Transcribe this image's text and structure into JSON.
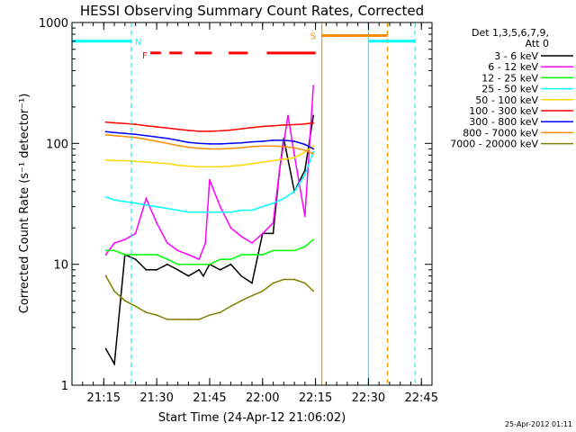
{
  "chart_data": {
    "type": "line",
    "title": "HESSI Observing Summary Count Rates, Corrected",
    "xlabel": "Start Time (24-Apr-12 21:06:02)",
    "ylabel": "Corrected Count Rate (s⁻¹ detector⁻¹)",
    "yscale": "log",
    "ylim": [
      1,
      1000
    ],
    "xlim_minutes": [
      21.1,
      22.8
    ],
    "x_ticks": [
      "21:15",
      "21:30",
      "21:45",
      "22:00",
      "22:15",
      "22:30",
      "22:45"
    ],
    "x_tick_minutes": [
      21.25,
      21.5,
      21.75,
      22.0,
      22.25,
      22.5,
      22.75
    ],
    "y_ticks": [
      "1",
      "10",
      "100",
      "1000"
    ],
    "y_tick_values": [
      1,
      10,
      100,
      1000
    ],
    "timestamp": "25-Apr-2012 01:11",
    "legend": {
      "header": [
        "Det 1,3,5,6,7,9,",
        "Att 0"
      ],
      "placement": "right"
    },
    "series": [
      {
        "name": "3 - 6 keV",
        "color": "#000000",
        "x": [
          21.26,
          21.3,
          21.35,
          21.4,
          21.45,
          21.5,
          21.55,
          21.6,
          21.65,
          21.7,
          21.72,
          21.75,
          21.8,
          21.85,
          21.9,
          21.95,
          22.0,
          22.05,
          22.08,
          22.1,
          22.15,
          22.2,
          22.24
        ],
        "y": [
          2,
          1.5,
          12,
          11,
          9,
          9,
          10,
          9,
          8,
          9,
          8,
          10,
          9,
          10,
          8,
          7,
          18,
          18,
          60,
          110,
          40,
          60,
          170
        ]
      },
      {
        "name": "6 - 12 keV",
        "color": "#ff00ff",
        "x": [
          21.26,
          21.3,
          21.35,
          21.4,
          21.45,
          21.5,
          21.55,
          21.6,
          21.65,
          21.7,
          21.73,
          21.75,
          21.8,
          21.85,
          21.9,
          21.95,
          22.0,
          22.05,
          22.08,
          22.12,
          22.15,
          22.2,
          22.24
        ],
        "y": [
          12,
          15,
          16,
          18,
          35,
          22,
          15,
          13,
          12,
          11,
          15,
          50,
          30,
          20,
          17,
          15,
          18,
          22,
          60,
          170,
          80,
          25,
          300
        ]
      },
      {
        "name": "12 - 25 keV",
        "color": "#00ff00",
        "x": [
          21.26,
          21.3,
          21.35,
          21.4,
          21.45,
          21.5,
          21.55,
          21.6,
          21.65,
          21.7,
          21.75,
          21.8,
          21.85,
          21.9,
          21.95,
          22.0,
          22.05,
          22.1,
          22.15,
          22.2,
          22.24
        ],
        "y": [
          13,
          13,
          12,
          12,
          12,
          12,
          11,
          10,
          10,
          10,
          10,
          11,
          11,
          12,
          12,
          12,
          13,
          13,
          13,
          14,
          16
        ]
      },
      {
        "name": "25 - 50 keV",
        "color": "#00ffff",
        "x": [
          21.26,
          21.3,
          21.35,
          21.4,
          21.45,
          21.5,
          21.55,
          21.6,
          21.65,
          21.7,
          21.75,
          21.8,
          21.85,
          21.9,
          21.95,
          22.0,
          22.05,
          22.1,
          22.15,
          22.2,
          22.24
        ],
        "y": [
          36,
          34,
          33,
          32,
          31,
          30,
          29,
          28,
          27,
          27,
          27,
          27,
          27,
          28,
          28,
          30,
          32,
          35,
          40,
          55,
          85
        ]
      },
      {
        "name": "50 - 100 keV",
        "color": "#ffd700",
        "x": [
          21.26,
          21.3,
          21.35,
          21.4,
          21.45,
          21.5,
          21.55,
          21.6,
          21.65,
          21.7,
          21.75,
          21.8,
          21.85,
          21.9,
          21.95,
          22.0,
          22.05,
          22.1,
          22.15,
          22.2,
          22.24
        ],
        "y": [
          73,
          72,
          72,
          71,
          70,
          69,
          68,
          66,
          65,
          64,
          64,
          64,
          65,
          66,
          68,
          70,
          72,
          74,
          76,
          85,
          95
        ]
      },
      {
        "name": "100 - 300 keV",
        "color": "#ff0000",
        "x": [
          21.26,
          21.3,
          21.35,
          21.4,
          21.45,
          21.5,
          21.55,
          21.6,
          21.65,
          21.7,
          21.75,
          21.8,
          21.85,
          21.9,
          21.95,
          22.0,
          22.05,
          22.1,
          22.15,
          22.2,
          22.24
        ],
        "y": [
          150,
          148,
          146,
          144,
          140,
          137,
          134,
          131,
          128,
          126,
          126,
          127,
          129,
          132,
          135,
          138,
          140,
          142,
          143,
          145,
          148
        ]
      },
      {
        "name": "300 - 800 keV",
        "color": "#0000ff",
        "x": [
          21.26,
          21.3,
          21.35,
          21.4,
          21.45,
          21.5,
          21.55,
          21.6,
          21.65,
          21.7,
          21.75,
          21.8,
          21.85,
          21.9,
          21.95,
          22.0,
          22.05,
          22.1,
          22.15,
          22.2,
          22.24
        ],
        "y": [
          125,
          123,
          121,
          119,
          116,
          113,
          110,
          106,
          102,
          100,
          99,
          99,
          100,
          101,
          103,
          104,
          106,
          106,
          104,
          98,
          90
        ]
      },
      {
        "name": "800 - 7000 keV",
        "color": "#ff8c00",
        "x": [
          21.26,
          21.3,
          21.35,
          21.4,
          21.45,
          21.5,
          21.55,
          21.6,
          21.65,
          21.7,
          21.75,
          21.8,
          21.85,
          21.9,
          21.95,
          22.0,
          22.05,
          22.1,
          22.15,
          22.2,
          22.24
        ],
        "y": [
          118,
          116,
          114,
          112,
          108,
          104,
          100,
          96,
          93,
          91,
          90,
          90,
          91,
          92,
          94,
          95,
          95,
          94,
          92,
          88,
          82
        ]
      },
      {
        "name": "7000 - 20000 keV",
        "color": "#808000",
        "x": [
          21.26,
          21.3,
          21.35,
          21.4,
          21.45,
          21.5,
          21.55,
          21.6,
          21.65,
          21.7,
          21.75,
          21.8,
          21.85,
          21.9,
          21.95,
          22.0,
          22.05,
          22.1,
          22.15,
          22.2,
          22.24
        ],
        "y": [
          8,
          6,
          5,
          4.5,
          4,
          3.8,
          3.5,
          3.5,
          3.5,
          3.5,
          3.8,
          4,
          4.5,
          5,
          5.5,
          6,
          7,
          7.5,
          7.5,
          7,
          6
        ]
      }
    ],
    "night_segments": [
      {
        "label": "",
        "x": [
          21.1,
          21.38
        ],
        "y": 700,
        "color": "#00ffff"
      },
      {
        "label": "",
        "x": [
          22.5,
          22.72
        ],
        "y": 700,
        "color": "#00ffff"
      }
    ],
    "flare_segments": [
      {
        "label": "F",
        "x": [
          21.47,
          21.52
        ],
        "y": 560,
        "color": "#ff0000"
      },
      {
        "label": "",
        "x": [
          21.56,
          21.62
        ],
        "y": 560,
        "color": "#ff0000"
      },
      {
        "label": "",
        "x": [
          21.68,
          21.76
        ],
        "y": 560,
        "color": "#ff0000"
      },
      {
        "label": "",
        "x": [
          21.84,
          21.93
        ],
        "y": 560,
        "color": "#ff0000"
      },
      {
        "label": "",
        "x": [
          22.02,
          22.25
        ],
        "y": 560,
        "color": "#ff0000"
      }
    ],
    "saa_segment": {
      "label": "S",
      "x": [
        22.28,
        22.59
      ],
      "y": 780,
      "color": "#ff8c00"
    },
    "n_label": {
      "label": "N",
      "x": 21.38,
      "color": "#00ffff"
    },
    "vlines": [
      {
        "x": 21.1,
        "style": "solid",
        "color": "#00ffff"
      },
      {
        "x": 21.38,
        "style": "dashed",
        "color": "#00ffff"
      },
      {
        "x": 22.28,
        "style": "solid",
        "color": "#ff8c00"
      },
      {
        "x": 22.5,
        "style": "solid",
        "color": "#00ffff"
      },
      {
        "x": 22.59,
        "style": "dashed",
        "color": "#ff8c00"
      },
      {
        "x": 22.72,
        "style": "dashed",
        "color": "#00ffff"
      }
    ]
  }
}
